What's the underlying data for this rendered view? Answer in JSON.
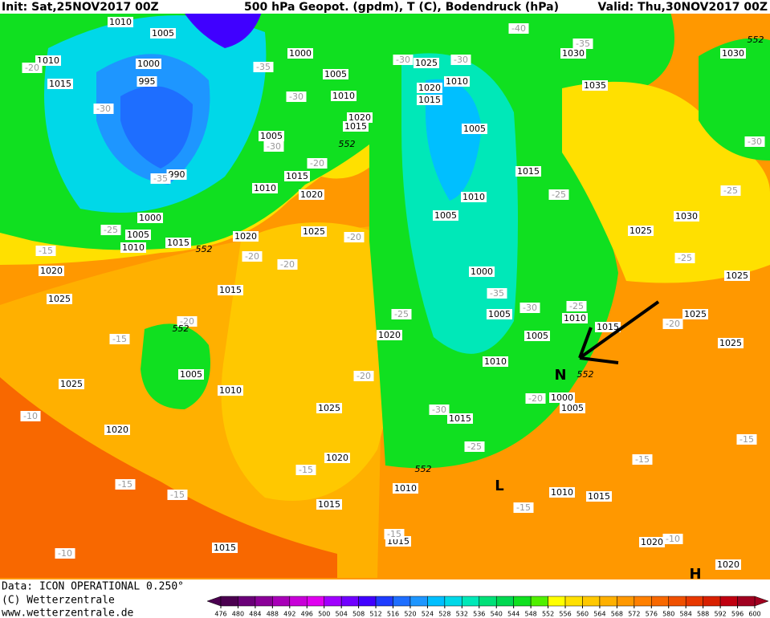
{
  "header": {
    "init": "Init: Sat,25NOV2017 00Z",
    "title": "500 hPa Geopot. (gpdm), T (C), Bodendruck (hPa)",
    "valid": "Valid: Thu,30NOV2017 00Z"
  },
  "footer": {
    "data": "Data: ICON OPERATIONAL 0.250°",
    "copyright": "(C) Wetterzentrale",
    "url": "www.wetterzentrale.de"
  },
  "colorbar": {
    "ticks": [
      476,
      480,
      484,
      488,
      492,
      496,
      500,
      504,
      508,
      512,
      516,
      520,
      524,
      528,
      532,
      536,
      540,
      544,
      548,
      552,
      556,
      560,
      564,
      568,
      572,
      576,
      580,
      584,
      588,
      592,
      596,
      600
    ],
    "colors": [
      "#4b0050",
      "#6a0078",
      "#8a0098",
      "#a800b8",
      "#c800d8",
      "#e000f0",
      "#a000ff",
      "#7000ff",
      "#4000ff",
      "#1e3cff",
      "#1e6eff",
      "#1e96ff",
      "#00bfff",
      "#00d8e8",
      "#00e8b8",
      "#00e078",
      "#00d850",
      "#10e020",
      "#50f000",
      "#ffff00",
      "#ffe000",
      "#ffc800",
      "#ffb000",
      "#ff9800",
      "#ff8000",
      "#f86800",
      "#f05000",
      "#e83800",
      "#d82000",
      "#c00010",
      "#a00020"
    ]
  },
  "map_labels": {
    "pressure": [
      "1010",
      "1005",
      "1010",
      "1000",
      "1015",
      "995",
      "990",
      "1005",
      "1010",
      "1015",
      "1020",
      "1000",
      "1005",
      "1010",
      "1015",
      "1020",
      "1025",
      "1020",
      "1025",
      "1015",
      "1005",
      "1010",
      "1025",
      "1020",
      "1025",
      "1020",
      "1015",
      "1015",
      "1020",
      "1010",
      "1015",
      "1015",
      "1000",
      "1005",
      "1010",
      "1015",
      "1010",
      "1005",
      "1005",
      "1010",
      "1015",
      "1000",
      "1005",
      "1010",
      "1015",
      "1020",
      "1015",
      "1010",
      "1025",
      "1005",
      "1030",
      "1035",
      "1030",
      "1030",
      "1025",
      "1025",
      "1025",
      "1025",
      "1020",
      "1020",
      "1000",
      "1005",
      "1010",
      "1020",
      "1015"
    ],
    "temperature": [
      "-40",
      "-35",
      "-30",
      "-30",
      "-35",
      "-30",
      "-30",
      "-35",
      "-30",
      "-20",
      "-25",
      "-25",
      "-30",
      "-20",
      "-25",
      "-15",
      "-20",
      "-20",
      "-20",
      "-25",
      "-25",
      "-35",
      "-30",
      "-25",
      "-20",
      "-20",
      "-15",
      "-20",
      "-20",
      "-30",
      "-25",
      "-10",
      "-15",
      "-15",
      "-15",
      "-15",
      "-15",
      "-15",
      "-10",
      "-15",
      "-10"
    ],
    "contour": [
      "552",
      "552",
      "552",
      "552",
      "552",
      "552"
    ],
    "markers": [
      "L",
      "N",
      "H"
    ]
  }
}
